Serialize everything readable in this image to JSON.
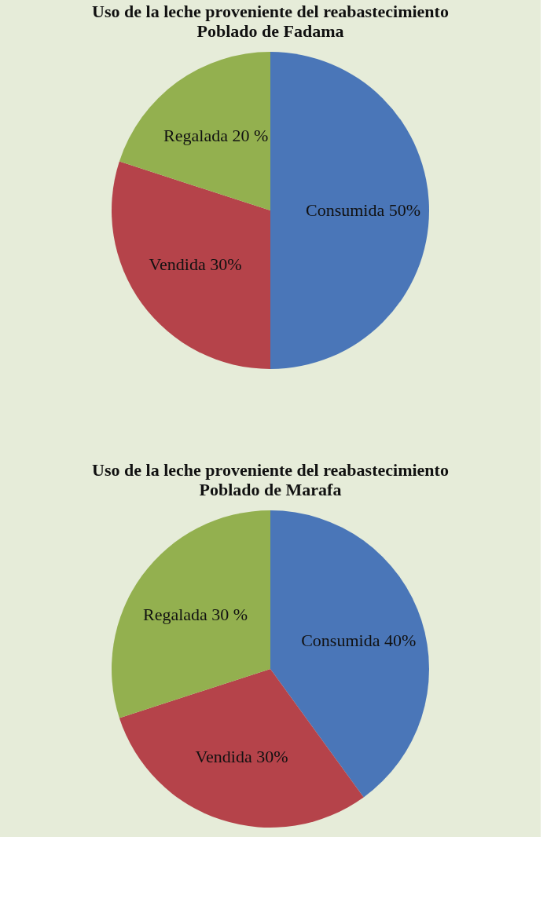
{
  "chart_data": [
    {
      "type": "pie",
      "title": "Uso de la leche proveniente del reabastecimiento",
      "subtitle": "Poblado de Fadama",
      "categories": [
        "Consumida",
        "Vendida",
        "Regalada"
      ],
      "values": [
        50,
        30,
        20
      ],
      "value_labels": [
        "50%",
        "30%",
        "20 %"
      ],
      "colors": [
        "#4a76b8",
        "#b5434a",
        "#93b04f"
      ],
      "legend": false
    },
    {
      "type": "pie",
      "title": "Uso de la leche proveniente del reabastecimiento",
      "subtitle": "Poblado de Marafa",
      "categories": [
        "Consumida",
        "Vendida",
        "Regalada"
      ],
      "values": [
        40,
        30,
        30
      ],
      "value_labels": [
        "40%",
        "30%",
        "30 %"
      ],
      "colors": [
        "#4a76b8",
        "#b5434a",
        "#93b04f"
      ],
      "legend": false
    }
  ]
}
